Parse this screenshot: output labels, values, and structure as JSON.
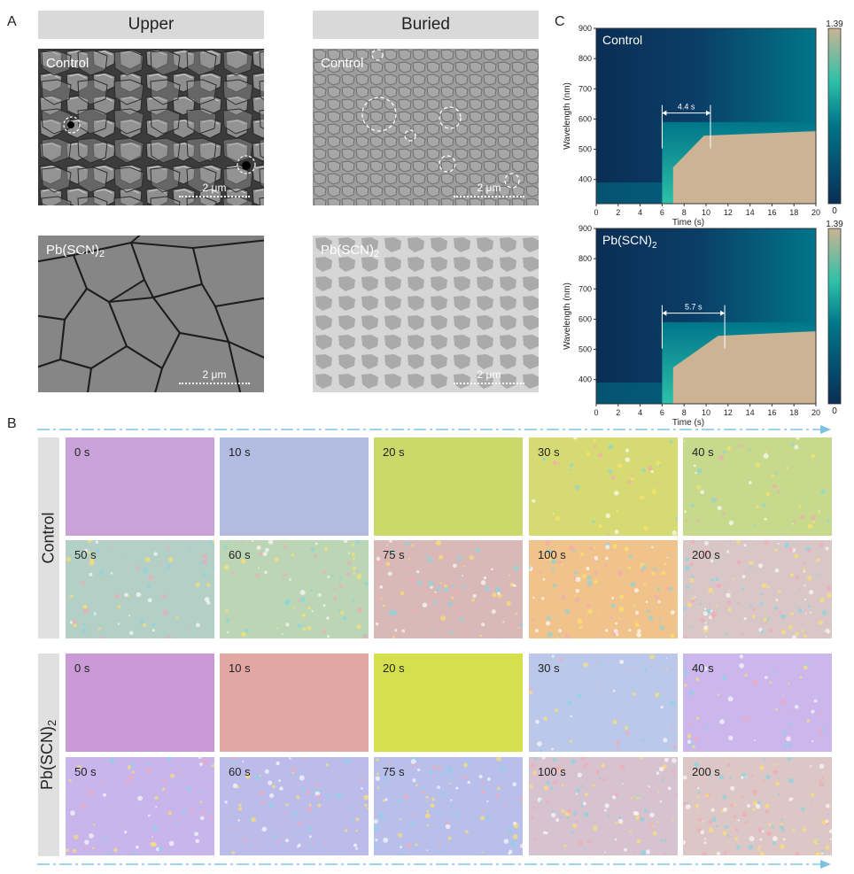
{
  "panels": {
    "a": "A",
    "b": "B",
    "c": "C"
  },
  "panel_a": {
    "col_upper": "Upper",
    "col_buried": "Buried",
    "row_control": "Control",
    "row_pb_base": "Pb(SCN)",
    "row_pb_sub": "2",
    "scale_bar": "2 μm"
  },
  "panel_b": {
    "row_control": "Control",
    "row_pb_base": "Pb(SCN)",
    "row_pb_sub": "2",
    "control_times": [
      "0 s",
      "10 s",
      "20 s",
      "30 s",
      "40 s",
      "50 s",
      "60 s",
      "75 s",
      "100 s",
      "200 s"
    ],
    "pb_times": [
      "0 s",
      "10 s",
      "20 s",
      "30 s",
      "40 s",
      "50 s",
      "60 s",
      "75 s",
      "100 s",
      "200 s"
    ],
    "control_colors": [
      "#c9a2d9",
      "#b2bbe0",
      "#cbd86a",
      "#d6da72",
      "#c6d98c",
      "#b4cfc6",
      "#bcd5b4",
      "#d8b9b8",
      "#f0c28c",
      "#d9c7c8"
    ],
    "pb_colors": [
      "#c99ad6",
      "#e2a7a3",
      "#d6e04e",
      "#bcc8ea",
      "#cbb7ec",
      "#c7b5ec",
      "#bcbcea",
      "#b7bfea",
      "#d7c2cf",
      "#dcc6c6"
    ]
  },
  "panel_c": {
    "control_label": "Control",
    "pb_base": "Pb(SCN)",
    "pb_sub": "2",
    "cbar_max": "1.39",
    "cbar_min": "0",
    "colors": {
      "low": "#0a2e55",
      "mid": "#00758a",
      "cyan": "#2ec1a8",
      "high": "#cbb394"
    }
  },
  "chart_data": [
    {
      "type": "heatmap",
      "title": "Control",
      "xlabel": "Time (s)",
      "ylabel": "Wavelength (nm)",
      "xlim": [
        0,
        20
      ],
      "ylim": [
        320,
        900
      ],
      "xticks": [
        0,
        2,
        4,
        6,
        8,
        10,
        12,
        14,
        16,
        18,
        20
      ],
      "yticks": [
        400,
        500,
        600,
        700,
        800,
        900
      ],
      "colorbar_range": [
        0,
        1.39
      ],
      "annotation": {
        "text": "4.4 s",
        "x_start": 6.0,
        "x_end": 10.4,
        "y": 620
      },
      "onset_time": 6.0,
      "transition_end_time": 10.4
    },
    {
      "type": "heatmap",
      "title": "Pb(SCN)2",
      "xlabel": "Time (s)",
      "ylabel": "Wavelength (nm)",
      "xlim": [
        0,
        20
      ],
      "ylim": [
        320,
        900
      ],
      "xticks": [
        0,
        2,
        4,
        6,
        8,
        10,
        12,
        14,
        16,
        18,
        20
      ],
      "yticks": [
        400,
        500,
        600,
        700,
        800,
        900
      ],
      "colorbar_range": [
        0,
        1.39
      ],
      "annotation": {
        "text": "5.7 s",
        "x_start": 6.0,
        "x_end": 11.7,
        "y": 620
      },
      "onset_time": 6.0,
      "transition_end_time": 11.7
    }
  ]
}
